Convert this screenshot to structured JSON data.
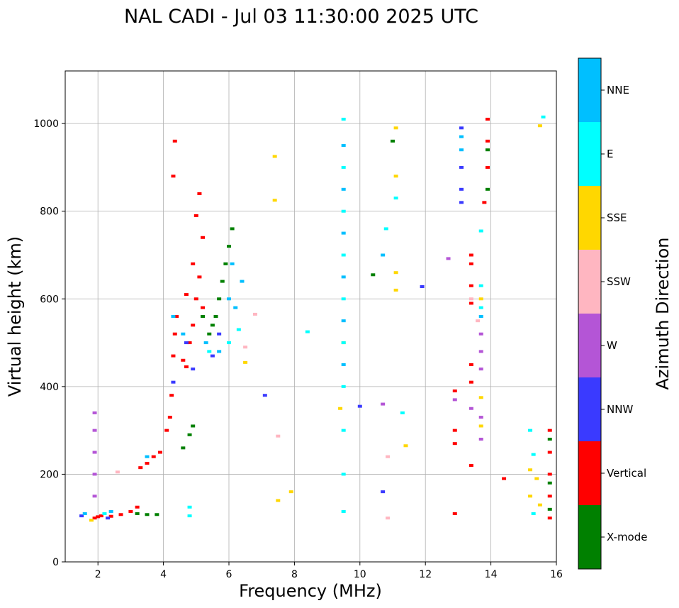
{
  "chart_data": {
    "type": "scatter",
    "title": "NAL CADI - Jul 03 11:30:00 2025 UTC",
    "xlabel": "Frequency (MHz)",
    "ylabel": "Virtual height (km)",
    "xlim": [
      1,
      16
    ],
    "ylim": [
      0,
      1120
    ],
    "xticks": [
      2,
      4,
      6,
      8,
      10,
      12,
      14,
      16
    ],
    "yticks": [
      0,
      200,
      400,
      600,
      800,
      1000
    ],
    "grid": true,
    "colorbar": {
      "label": "Azimuth Direction",
      "categories": [
        {
          "name": "X-mode",
          "color": "#008000"
        },
        {
          "name": "Vertical",
          "color": "#ff0000"
        },
        {
          "name": "NNW",
          "color": "#3a3aff"
        },
        {
          "name": "W",
          "color": "#b455d6"
        },
        {
          "name": "SSW",
          "color": "#ffb6c1"
        },
        {
          "name": "SSE",
          "color": "#ffd700"
        },
        {
          "name": "E",
          "color": "#00ffff"
        },
        {
          "name": "NNE",
          "color": "#00bfff"
        }
      ]
    },
    "series": [
      {
        "name": "Vertical",
        "points": [
          [
            1.9,
            100
          ],
          [
            2.0,
            103
          ],
          [
            2.1,
            105
          ],
          [
            2.4,
            104
          ],
          [
            2.7,
            108
          ],
          [
            3.0,
            115
          ],
          [
            3.2,
            125
          ],
          [
            3.3,
            215
          ],
          [
            3.5,
            225
          ],
          [
            3.7,
            240
          ],
          [
            3.9,
            250
          ],
          [
            4.1,
            300
          ],
          [
            4.2,
            330
          ],
          [
            4.25,
            380
          ],
          [
            4.3,
            470
          ],
          [
            4.35,
            520
          ],
          [
            4.4,
            560
          ],
          [
            4.6,
            460
          ],
          [
            4.7,
            445
          ],
          [
            4.8,
            500
          ],
          [
            4.9,
            540
          ],
          [
            5.0,
            600
          ],
          [
            5.1,
            650
          ],
          [
            5.2,
            580
          ],
          [
            4.7,
            610
          ],
          [
            4.9,
            680
          ],
          [
            5.2,
            740
          ],
          [
            5.0,
            790
          ],
          [
            5.1,
            840
          ],
          [
            4.3,
            880
          ],
          [
            4.35,
            960
          ],
          [
            12.9,
            390
          ],
          [
            12.9,
            300
          ],
          [
            12.9,
            270
          ],
          [
            12.9,
            110
          ],
          [
            13.4,
            700
          ],
          [
            13.4,
            680
          ],
          [
            13.4,
            630
          ],
          [
            13.4,
            590
          ],
          [
            13.4,
            450
          ],
          [
            13.4,
            410
          ],
          [
            13.4,
            220
          ],
          [
            13.8,
            820
          ],
          [
            13.9,
            900
          ],
          [
            13.9,
            960
          ],
          [
            13.9,
            1010
          ],
          [
            14.4,
            190
          ],
          [
            15.8,
            300
          ],
          [
            15.8,
            250
          ],
          [
            15.8,
            200
          ],
          [
            15.8,
            150
          ],
          [
            15.8,
            100
          ]
        ]
      },
      {
        "name": "X-mode",
        "points": [
          [
            3.2,
            110
          ],
          [
            3.5,
            108
          ],
          [
            3.8,
            108
          ],
          [
            4.6,
            260
          ],
          [
            4.8,
            290
          ],
          [
            4.9,
            310
          ],
          [
            5.5,
            540
          ],
          [
            5.6,
            560
          ],
          [
            5.7,
            600
          ],
          [
            5.8,
            640
          ],
          [
            5.9,
            680
          ],
          [
            6.0,
            720
          ],
          [
            6.1,
            760
          ],
          [
            5.2,
            560
          ],
          [
            5.4,
            520
          ],
          [
            10.4,
            655
          ],
          [
            11.0,
            960
          ],
          [
            13.9,
            850
          ],
          [
            13.9,
            940
          ],
          [
            15.8,
            180
          ],
          [
            15.8,
            280
          ],
          [
            15.8,
            120
          ]
        ]
      },
      {
        "name": "NNW",
        "points": [
          [
            1.5,
            105
          ],
          [
            2.3,
            100
          ],
          [
            4.3,
            410
          ],
          [
            4.7,
            500
          ],
          [
            4.9,
            440
          ],
          [
            5.5,
            470
          ],
          [
            5.7,
            520
          ],
          [
            7.1,
            380
          ],
          [
            10.0,
            355
          ],
          [
            10.7,
            160
          ],
          [
            11.9,
            628
          ],
          [
            13.1,
            990
          ],
          [
            13.1,
            900
          ],
          [
            13.1,
            850
          ],
          [
            13.1,
            820
          ]
        ]
      },
      {
        "name": "W",
        "points": [
          [
            1.9,
            340
          ],
          [
            1.9,
            300
          ],
          [
            1.9,
            250
          ],
          [
            1.9,
            200
          ],
          [
            1.9,
            150
          ],
          [
            12.9,
            370
          ],
          [
            13.4,
            350
          ],
          [
            13.7,
            330
          ],
          [
            13.7,
            280
          ],
          [
            13.7,
            480
          ],
          [
            13.7,
            520
          ],
          [
            13.7,
            440
          ],
          [
            12.7,
            692
          ],
          [
            10.7,
            360
          ]
        ]
      },
      {
        "name": "SSW",
        "points": [
          [
            2.6,
            205
          ],
          [
            6.5,
            490
          ],
          [
            6.8,
            565
          ],
          [
            7.5,
            287
          ],
          [
            10.85,
            240
          ],
          [
            10.85,
            100
          ],
          [
            13.4,
            600
          ],
          [
            13.6,
            550
          ]
        ]
      },
      {
        "name": "SSE",
        "points": [
          [
            1.8,
            95
          ],
          [
            6.5,
            455
          ],
          [
            7.4,
            925
          ],
          [
            7.4,
            825
          ],
          [
            9.4,
            350
          ],
          [
            9.5,
            500
          ],
          [
            11.1,
            620
          ],
          [
            11.1,
            660
          ],
          [
            11.1,
            880
          ],
          [
            11.1,
            990
          ],
          [
            11.4,
            265
          ],
          [
            13.7,
            310
          ],
          [
            13.7,
            375
          ],
          [
            13.7,
            600
          ],
          [
            15.2,
            210
          ],
          [
            15.4,
            190
          ],
          [
            15.2,
            150
          ],
          [
            15.5,
            130
          ],
          [
            15.5,
            995
          ],
          [
            7.5,
            140
          ],
          [
            7.9,
            160
          ]
        ]
      },
      {
        "name": "E",
        "points": [
          [
            2.2,
            110
          ],
          [
            4.8,
            105
          ],
          [
            4.8,
            125
          ],
          [
            5.4,
            480
          ],
          [
            6.0,
            500
          ],
          [
            6.3,
            530
          ],
          [
            8.4,
            525
          ],
          [
            9.5,
            1010
          ],
          [
            9.5,
            900
          ],
          [
            9.5,
            800
          ],
          [
            9.5,
            700
          ],
          [
            9.5,
            600
          ],
          [
            9.5,
            500
          ],
          [
            9.5,
            400
          ],
          [
            9.5,
            300
          ],
          [
            9.5,
            200
          ],
          [
            9.5,
            115
          ],
          [
            10.8,
            760
          ],
          [
            11.1,
            830
          ],
          [
            11.3,
            340
          ],
          [
            13.7,
            755
          ],
          [
            13.7,
            630
          ],
          [
            13.7,
            580
          ],
          [
            15.2,
            300
          ],
          [
            15.3,
            245
          ],
          [
            15.3,
            110
          ],
          [
            15.6,
            1015
          ]
        ]
      },
      {
        "name": "NNE",
        "points": [
          [
            1.6,
            110
          ],
          [
            2.4,
            115
          ],
          [
            3.5,
            240
          ],
          [
            4.3,
            560
          ],
          [
            4.6,
            520
          ],
          [
            5.3,
            500
          ],
          [
            5.7,
            480
          ],
          [
            6.2,
            580
          ],
          [
            6.4,
            640
          ],
          [
            6.1,
            680
          ],
          [
            6.0,
            600
          ],
          [
            9.5,
            950
          ],
          [
            9.5,
            850
          ],
          [
            9.5,
            750
          ],
          [
            9.5,
            650
          ],
          [
            9.5,
            550
          ],
          [
            9.5,
            450
          ],
          [
            10.7,
            700
          ],
          [
            13.1,
            970
          ],
          [
            13.1,
            940
          ],
          [
            13.7,
            560
          ]
        ]
      }
    ]
  }
}
